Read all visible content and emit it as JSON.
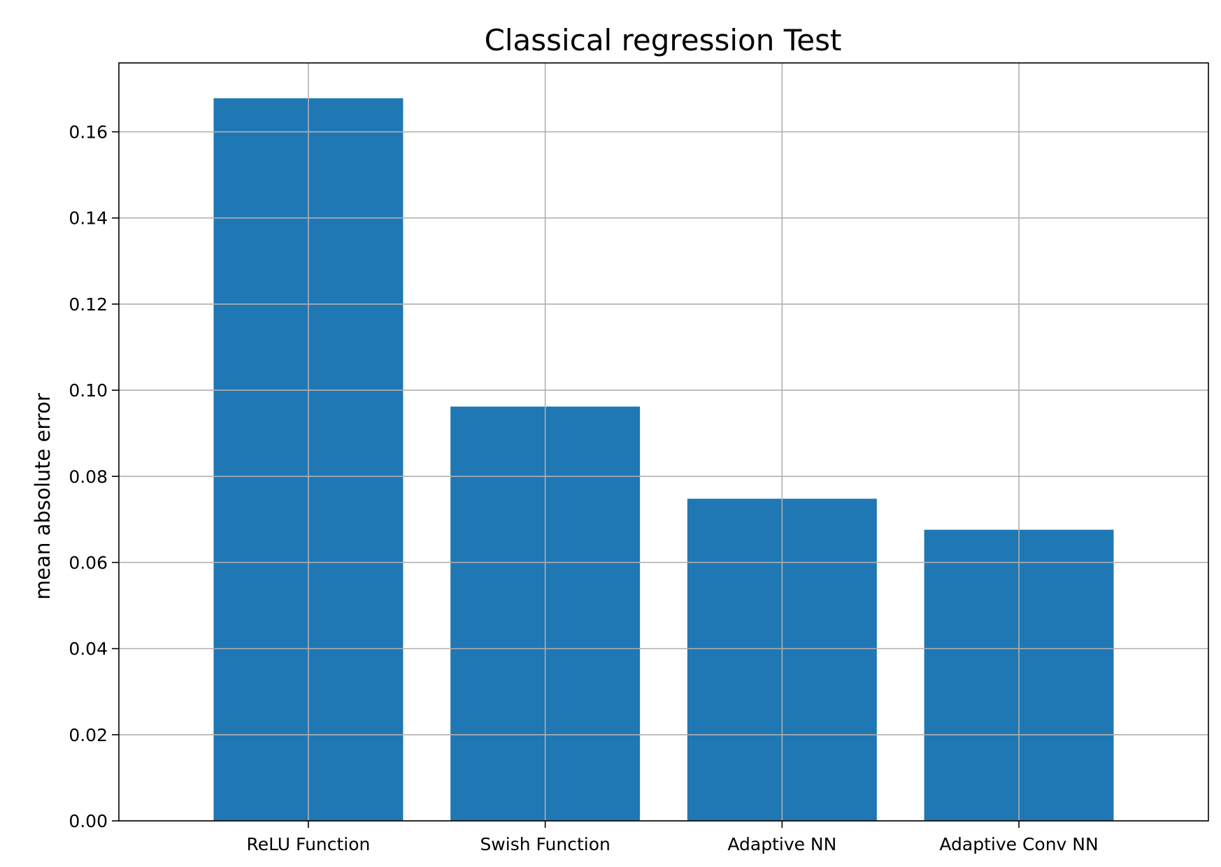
{
  "chart_data": {
    "type": "bar",
    "title": "Classical regression Test",
    "xlabel": "",
    "ylabel": "mean absolute error",
    "categories": [
      "ReLU Function",
      "Swish Function",
      "Adaptive NN",
      "Adaptive Conv NN"
    ],
    "values": [
      0.1678,
      0.0962,
      0.0748,
      0.0676
    ],
    "ylim": [
      0,
      0.176
    ],
    "yticks": [
      "0.00",
      "0.02",
      "0.04",
      "0.06",
      "0.08",
      "0.10",
      "0.12",
      "0.14",
      "0.16"
    ],
    "bar_color": "#1f77b4",
    "grid": true,
    "legend": "none"
  }
}
